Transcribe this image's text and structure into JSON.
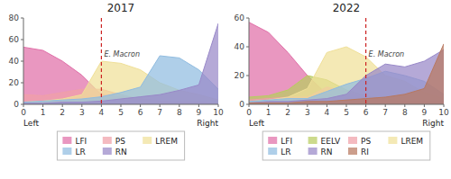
{
  "chart_data": [
    {
      "type": "area",
      "title": "2017",
      "x": [
        0,
        1,
        2,
        3,
        4,
        5,
        6,
        7,
        8,
        9,
        10
      ],
      "xlim": [
        0,
        10
      ],
      "xticks": [
        0,
        1,
        2,
        3,
        4,
        5,
        6,
        7,
        8,
        9,
        10
      ],
      "ylim": [
        0,
        80
      ],
      "yticks": [
        0,
        20,
        40,
        60,
        80
      ],
      "xlabel_left": "Left",
      "xlabel_right": "Right",
      "annotations": [
        {
          "text": "E. Macron",
          "x": 4
        }
      ],
      "grid": false,
      "legend": "bottom",
      "series": [
        {
          "name": "LFI",
          "color": "#e06fa8",
          "values": [
            53,
            50,
            40,
            27,
            9,
            7,
            5,
            3,
            2,
            2,
            1
          ]
        },
        {
          "name": "PS",
          "color": "#f0a0a8",
          "values": [
            9,
            8,
            11,
            14,
            14,
            9,
            5,
            3,
            2,
            2,
            1
          ]
        },
        {
          "name": "LREM",
          "color": "#f0e098",
          "values": [
            2,
            3,
            5,
            9,
            40,
            38,
            32,
            20,
            13,
            9,
            4
          ]
        },
        {
          "name": "LR",
          "color": "#90bce0",
          "values": [
            2,
            3,
            4,
            5,
            7,
            11,
            16,
            45,
            43,
            32,
            14
          ]
        },
        {
          "name": "RN",
          "color": "#9888c8",
          "values": [
            1,
            1,
            2,
            2,
            3,
            5,
            7,
            9,
            13,
            18,
            75
          ]
        }
      ]
    },
    {
      "type": "area",
      "title": "2022",
      "x": [
        0,
        1,
        2,
        3,
        4,
        5,
        6,
        7,
        8,
        9,
        10
      ],
      "xlim": [
        0,
        10
      ],
      "xticks": [
        0,
        1,
        2,
        3,
        4,
        5,
        6,
        7,
        8,
        9,
        10
      ],
      "ylim": [
        0,
        60
      ],
      "yticks": [
        0,
        20,
        40,
        60
      ],
      "xlabel_left": "Left",
      "xlabel_right": "Right",
      "annotations": [
        {
          "text": "E. Macron",
          "x": 6
        }
      ],
      "grid": false,
      "legend": "bottom",
      "series": [
        {
          "name": "LFI",
          "color": "#e06fa8",
          "values": [
            57,
            50,
            36,
            20,
            7,
            4,
            3,
            2,
            2,
            2,
            2
          ]
        },
        {
          "name": "EELV",
          "color": "#b8cc60",
          "values": [
            5,
            6,
            10,
            20,
            17,
            10,
            6,
            4,
            2,
            2,
            1
          ]
        },
        {
          "name": "PS",
          "color": "#f0a0a8",
          "values": [
            3,
            4,
            5,
            5,
            12,
            9,
            5,
            3,
            2,
            2,
            1
          ]
        },
        {
          "name": "LREM",
          "color": "#f0e098",
          "values": [
            2,
            3,
            5,
            11,
            36,
            40,
            33,
            20,
            16,
            8,
            4
          ]
        },
        {
          "name": "LR",
          "color": "#90bce0",
          "values": [
            2,
            3,
            4,
            4,
            9,
            14,
            18,
            23,
            20,
            16,
            7
          ]
        },
        {
          "name": "RN",
          "color": "#9888c8",
          "values": [
            1,
            2,
            2,
            3,
            4,
            7,
            20,
            28,
            26,
            30,
            38
          ]
        },
        {
          "name": "RI",
          "color": "#b87860",
          "values": [
            1,
            1,
            1,
            2,
            2,
            3,
            4,
            5,
            7,
            11,
            42
          ]
        }
      ]
    }
  ]
}
